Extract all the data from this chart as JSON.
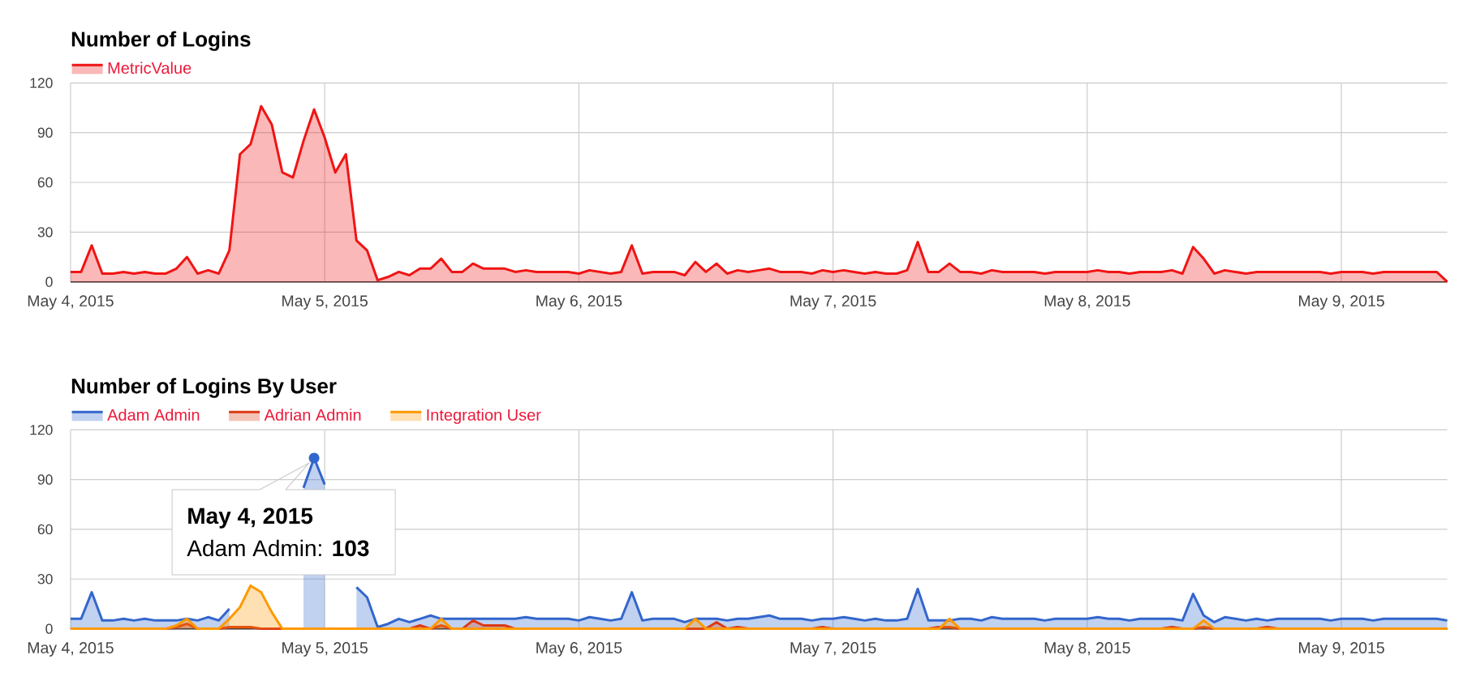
{
  "chart_data": [
    {
      "type": "area",
      "title": "Number of Logins",
      "legend": "top left",
      "grid": true,
      "x": [
        "2015-05-04T00:00",
        "2015-05-04T01:00",
        "2015-05-04T02:00",
        "2015-05-04T03:00",
        "2015-05-04T04:00",
        "2015-05-04T05:00",
        "2015-05-04T06:00",
        "2015-05-04T07:00",
        "2015-05-04T08:00",
        "2015-05-04T09:00",
        "2015-05-04T10:00",
        "2015-05-04T11:00",
        "2015-05-04T12:00",
        "2015-05-04T13:00",
        "2015-05-04T14:00",
        "2015-05-04T15:00",
        "2015-05-04T16:00",
        "2015-05-04T17:00",
        "2015-05-04T18:00",
        "2015-05-04T19:00",
        "2015-05-04T20:00",
        "2015-05-04T21:00",
        "2015-05-04T22:00",
        "2015-05-04T23:00",
        "2015-05-05T00:00",
        "2015-05-05T01:00",
        "2015-05-05T02:00",
        "2015-05-05T03:00",
        "2015-05-05T04:00",
        "2015-05-05T05:00",
        "2015-05-05T06:00",
        "2015-05-05T07:00",
        "2015-05-05T08:00",
        "2015-05-05T09:00",
        "2015-05-05T10:00",
        "2015-05-05T11:00",
        "2015-05-05T12:00",
        "2015-05-05T13:00",
        "2015-05-05T14:00",
        "2015-05-05T15:00",
        "2015-05-05T16:00",
        "2015-05-05T17:00",
        "2015-05-05T18:00",
        "2015-05-05T19:00",
        "2015-05-05T20:00",
        "2015-05-05T21:00",
        "2015-05-05T22:00",
        "2015-05-05T23:00",
        "2015-05-06T00:00",
        "2015-05-06T01:00",
        "2015-05-06T02:00",
        "2015-05-06T03:00",
        "2015-05-06T04:00",
        "2015-05-06T05:00",
        "2015-05-06T06:00",
        "2015-05-06T07:00",
        "2015-05-06T08:00",
        "2015-05-06T09:00",
        "2015-05-06T10:00",
        "2015-05-06T11:00",
        "2015-05-06T12:00",
        "2015-05-06T13:00",
        "2015-05-06T14:00",
        "2015-05-06T15:00",
        "2015-05-06T16:00",
        "2015-05-06T17:00",
        "2015-05-06T18:00",
        "2015-05-06T19:00",
        "2015-05-06T20:00",
        "2015-05-06T21:00",
        "2015-05-06T22:00",
        "2015-05-06T23:00",
        "2015-05-07T00:00",
        "2015-05-07T01:00",
        "2015-05-07T02:00",
        "2015-05-07T03:00",
        "2015-05-07T04:00",
        "2015-05-07T05:00",
        "2015-05-07T06:00",
        "2015-05-07T07:00",
        "2015-05-07T08:00",
        "2015-05-07T09:00",
        "2015-05-07T10:00",
        "2015-05-07T11:00",
        "2015-05-07T12:00",
        "2015-05-07T13:00",
        "2015-05-07T14:00",
        "2015-05-07T15:00",
        "2015-05-07T16:00",
        "2015-05-07T17:00",
        "2015-05-07T18:00",
        "2015-05-07T19:00",
        "2015-05-07T20:00",
        "2015-05-07T21:00",
        "2015-05-07T22:00",
        "2015-05-07T23:00",
        "2015-05-08T00:00",
        "2015-05-08T01:00",
        "2015-05-08T02:00",
        "2015-05-08T03:00",
        "2015-05-08T04:00",
        "2015-05-08T05:00",
        "2015-05-08T06:00",
        "2015-05-08T07:00",
        "2015-05-08T08:00",
        "2015-05-08T09:00",
        "2015-05-08T10:00",
        "2015-05-08T11:00",
        "2015-05-08T12:00",
        "2015-05-08T13:00",
        "2015-05-08T14:00",
        "2015-05-08T15:00",
        "2015-05-08T16:00",
        "2015-05-08T17:00",
        "2015-05-08T18:00",
        "2015-05-08T19:00",
        "2015-05-08T20:00",
        "2015-05-08T21:00",
        "2015-05-08T22:00",
        "2015-05-08T23:00",
        "2015-05-09T00:00",
        "2015-05-09T01:00",
        "2015-05-09T02:00",
        "2015-05-09T03:00",
        "2015-05-09T04:00",
        "2015-05-09T05:00",
        "2015-05-09T06:00",
        "2015-05-09T07:00",
        "2015-05-09T08:00",
        "2015-05-09T09:00",
        "2015-05-09T10:00"
      ],
      "xlim": [
        "2015-05-04T00:00",
        "2015-05-09T10:00"
      ],
      "xticks": [
        {
          "value": "2015-05-04",
          "label": "May 4, 2015"
        },
        {
          "value": "2015-05-05",
          "label": "May 5, 2015"
        },
        {
          "value": "2015-05-06",
          "label": "May 6, 2015"
        },
        {
          "value": "2015-05-07",
          "label": "May 7, 2015"
        },
        {
          "value": "2015-05-08",
          "label": "May 8, 2015"
        },
        {
          "value": "2015-05-09",
          "label": "May 9, 2015"
        }
      ],
      "ylim": [
        0,
        120
      ],
      "yticks": [
        0,
        30,
        60,
        90,
        120
      ],
      "series": [
        {
          "name": "MetricValue",
          "color": "#f01414",
          "values": [
            6,
            6,
            22,
            5,
            5,
            6,
            5,
            6,
            5,
            5,
            8,
            15,
            5,
            7,
            5,
            19,
            77,
            83,
            106,
            95,
            66,
            63,
            85,
            104,
            87,
            66,
            77,
            25,
            19,
            1,
            3,
            6,
            4,
            8,
            8,
            14,
            6,
            6,
            11,
            8,
            8,
            8,
            6,
            7,
            6,
            6,
            6,
            6,
            5,
            7,
            6,
            5,
            6,
            22,
            5,
            6,
            6,
            6,
            4,
            12,
            6,
            11,
            5,
            7,
            6,
            7,
            8,
            6,
            6,
            6,
            5,
            7,
            6,
            7,
            6,
            5,
            6,
            5,
            5,
            7,
            24,
            6,
            6,
            11,
            6,
            6,
            5,
            7,
            6,
            6,
            6,
            6,
            5,
            6,
            6,
            6,
            6,
            7,
            6,
            6,
            5,
            6,
            6,
            6,
            7,
            5,
            21,
            14,
            5,
            7,
            6,
            5,
            6,
            6,
            6,
            6,
            6,
            6,
            6,
            5,
            6,
            6,
            6,
            5,
            6,
            6,
            6,
            6,
            6,
            6,
            0
          ]
        }
      ]
    },
    {
      "type": "area",
      "title": "Number of Logins By User",
      "legend": "top left",
      "grid": true,
      "x": [
        "2015-05-04T00:00",
        "2015-05-04T01:00",
        "2015-05-04T02:00",
        "2015-05-04T03:00",
        "2015-05-04T04:00",
        "2015-05-04T05:00",
        "2015-05-04T06:00",
        "2015-05-04T07:00",
        "2015-05-04T08:00",
        "2015-05-04T09:00",
        "2015-05-04T10:00",
        "2015-05-04T11:00",
        "2015-05-04T12:00",
        "2015-05-04T13:00",
        "2015-05-04T14:00",
        "2015-05-04T15:00",
        "2015-05-04T16:00",
        "2015-05-04T17:00",
        "2015-05-04T18:00",
        "2015-05-04T19:00",
        "2015-05-04T20:00",
        "2015-05-04T21:00",
        "2015-05-04T22:00",
        "2015-05-04T23:00",
        "2015-05-05T00:00",
        "2015-05-05T01:00",
        "2015-05-05T02:00",
        "2015-05-05T03:00",
        "2015-05-05T04:00",
        "2015-05-05T05:00",
        "2015-05-05T06:00",
        "2015-05-05T07:00",
        "2015-05-05T08:00",
        "2015-05-05T09:00",
        "2015-05-05T10:00",
        "2015-05-05T11:00",
        "2015-05-05T12:00",
        "2015-05-05T13:00",
        "2015-05-05T14:00",
        "2015-05-05T15:00",
        "2015-05-05T16:00",
        "2015-05-05T17:00",
        "2015-05-05T18:00",
        "2015-05-05T19:00",
        "2015-05-05T20:00",
        "2015-05-05T21:00",
        "2015-05-05T22:00",
        "2015-05-05T23:00",
        "2015-05-06T00:00",
        "2015-05-06T01:00",
        "2015-05-06T02:00",
        "2015-05-06T03:00",
        "2015-05-06T04:00",
        "2015-05-06T05:00",
        "2015-05-06T06:00",
        "2015-05-06T07:00",
        "2015-05-06T08:00",
        "2015-05-06T09:00",
        "2015-05-06T10:00",
        "2015-05-06T11:00",
        "2015-05-06T12:00",
        "2015-05-06T13:00",
        "2015-05-06T14:00",
        "2015-05-06T15:00",
        "2015-05-06T16:00",
        "2015-05-06T17:00",
        "2015-05-06T18:00",
        "2015-05-06T19:00",
        "2015-05-06T20:00",
        "2015-05-06T21:00",
        "2015-05-06T22:00",
        "2015-05-06T23:00",
        "2015-05-07T00:00",
        "2015-05-07T01:00",
        "2015-05-07T02:00",
        "2015-05-07T03:00",
        "2015-05-07T04:00",
        "2015-05-07T05:00",
        "2015-05-07T06:00",
        "2015-05-07T07:00",
        "2015-05-07T08:00",
        "2015-05-07T09:00",
        "2015-05-07T10:00",
        "2015-05-07T11:00",
        "2015-05-07T12:00",
        "2015-05-07T13:00",
        "2015-05-07T14:00",
        "2015-05-07T15:00",
        "2015-05-07T16:00",
        "2015-05-07T17:00",
        "2015-05-07T18:00",
        "2015-05-07T19:00",
        "2015-05-07T20:00",
        "2015-05-07T21:00",
        "2015-05-07T22:00",
        "2015-05-07T23:00",
        "2015-05-08T00:00",
        "2015-05-08T01:00",
        "2015-05-08T02:00",
        "2015-05-08T03:00",
        "2015-05-08T04:00",
        "2015-05-08T05:00",
        "2015-05-08T06:00",
        "2015-05-08T07:00",
        "2015-05-08T08:00",
        "2015-05-08T09:00",
        "2015-05-08T10:00",
        "2015-05-08T11:00",
        "2015-05-08T12:00",
        "2015-05-08T13:00",
        "2015-05-08T14:00",
        "2015-05-08T15:00",
        "2015-05-08T16:00",
        "2015-05-08T17:00",
        "2015-05-08T18:00",
        "2015-05-08T19:00",
        "2015-05-08T20:00",
        "2015-05-08T21:00",
        "2015-05-08T22:00",
        "2015-05-08T23:00",
        "2015-05-09T00:00",
        "2015-05-09T01:00",
        "2015-05-09T02:00",
        "2015-05-09T03:00",
        "2015-05-09T04:00",
        "2015-05-09T05:00",
        "2015-05-09T06:00",
        "2015-05-09T07:00",
        "2015-05-09T08:00",
        "2015-05-09T09:00",
        "2015-05-09T10:00"
      ],
      "xlim": [
        "2015-05-04T00:00",
        "2015-05-09T10:00"
      ],
      "xticks": [
        {
          "value": "2015-05-04",
          "label": "May 4, 2015"
        },
        {
          "value": "2015-05-05",
          "label": "May 5, 2015"
        },
        {
          "value": "2015-05-06",
          "label": "May 6, 2015"
        },
        {
          "value": "2015-05-07",
          "label": "May 7, 2015"
        },
        {
          "value": "2015-05-08",
          "label": "May 8, 2015"
        },
        {
          "value": "2015-05-09",
          "label": "May 9, 2015"
        }
      ],
      "ylim": [
        0,
        120
      ],
      "yticks": [
        0,
        30,
        60,
        90,
        120
      ],
      "series": [
        {
          "name": "Adam Admin",
          "color": "#3366cc",
          "values": [
            6,
            6,
            22,
            5,
            5,
            6,
            5,
            6,
            5,
            5,
            5,
            6,
            5,
            7,
            5,
            12,
            null,
            null,
            null,
            null,
            null,
            null,
            85,
            103,
            87,
            null,
            null,
            25,
            19,
            1,
            3,
            6,
            4,
            6,
            8,
            6,
            6,
            6,
            6,
            6,
            6,
            6,
            6,
            7,
            6,
            6,
            6,
            6,
            5,
            7,
            6,
            5,
            6,
            22,
            5,
            6,
            6,
            6,
            4,
            6,
            6,
            6,
            5,
            6,
            6,
            7,
            8,
            6,
            6,
            6,
            5,
            6,
            6,
            7,
            6,
            5,
            6,
            5,
            5,
            6,
            24,
            5,
            5,
            5,
            6,
            6,
            5,
            7,
            6,
            6,
            6,
            6,
            5,
            6,
            6,
            6,
            6,
            7,
            6,
            6,
            5,
            6,
            6,
            6,
            6,
            5,
            21,
            8,
            4,
            7,
            6,
            5,
            6,
            5,
            6,
            6,
            6,
            6,
            6,
            5,
            6,
            6,
            6,
            5,
            6,
            6,
            6,
            6,
            6,
            6,
            5
          ]
        },
        {
          "name": "Adrian Admin",
          "color": "#dc3912",
          "x": [
            "2015-05-04T00:00",
            "2015-05-04T09:00",
            "2015-05-04T10:00",
            "2015-05-04T11:00",
            "2015-05-04T12:00",
            "2015-05-04T14:00",
            "2015-05-04T15:00",
            "2015-05-04T17:00",
            "2015-05-04T18:00",
            "2015-05-05T08:00",
            "2015-05-05T09:00",
            "2015-05-05T10:00",
            "2015-05-05T11:00",
            "2015-05-05T12:00",
            "2015-05-05T13:00",
            "2015-05-05T14:00",
            "2015-05-05T15:00",
            "2015-05-05T17:00",
            "2015-05-05T18:00",
            "2015-05-06T12:00",
            "2015-05-06T13:00",
            "2015-05-06T14:00",
            "2015-05-06T15:00",
            "2015-05-06T16:00",
            "2015-05-06T22:00",
            "2015-05-06T23:00",
            "2015-05-07T00:00",
            "2015-05-07T09:00",
            "2015-05-07T10:00",
            "2015-05-07T11:00",
            "2015-05-07T12:00",
            "2015-05-08T07:00",
            "2015-05-08T08:00",
            "2015-05-08T09:00",
            "2015-05-08T10:00",
            "2015-05-08T11:00",
            "2015-05-08T12:00",
            "2015-05-08T16:00",
            "2015-05-08T17:00",
            "2015-05-08T18:00",
            "2015-05-09T10:00"
          ],
          "values": [
            0,
            0,
            1,
            3,
            0,
            0,
            1,
            1,
            0,
            0,
            2,
            0,
            2,
            0,
            0,
            5,
            2,
            2,
            0,
            0,
            4,
            0,
            1,
            0,
            0,
            1,
            0,
            0,
            1,
            1,
            0,
            0,
            1,
            0,
            0,
            1,
            0,
            0,
            1,
            0,
            0
          ]
        },
        {
          "name": "Integration User",
          "color": "#ff9900",
          "x": [
            "2015-05-04T00:00",
            "2015-05-04T09:00",
            "2015-05-04T10:00",
            "2015-05-04T11:00",
            "2015-05-04T12:00",
            "2015-05-04T14:00",
            "2015-05-04T15:00",
            "2015-05-04T16:00",
            "2015-05-04T17:00",
            "2015-05-04T18:00",
            "2015-05-04T19:00",
            "2015-05-04T20:00",
            "2015-05-05T10:00",
            "2015-05-05T11:00",
            "2015-05-05T12:00",
            "2015-05-06T10:00",
            "2015-05-06T11:00",
            "2015-05-06T12:00",
            "2015-05-07T10:00",
            "2015-05-07T11:00",
            "2015-05-07T12:00",
            "2015-05-08T10:00",
            "2015-05-08T11:00",
            "2015-05-08T12:00",
            "2015-05-09T10:00"
          ],
          "values": [
            0,
            0,
            2,
            6,
            0,
            0,
            6,
            13,
            26,
            22,
            10,
            0,
            0,
            6,
            0,
            0,
            6,
            0,
            0,
            6,
            0,
            0,
            5,
            0,
            0
          ]
        }
      ],
      "annotations": [
        {
          "text": "May 4, 2015",
          "x": "2015-05-04T23:00",
          "y": 103
        },
        "Adam Admin: **103**"
      ]
    }
  ]
}
